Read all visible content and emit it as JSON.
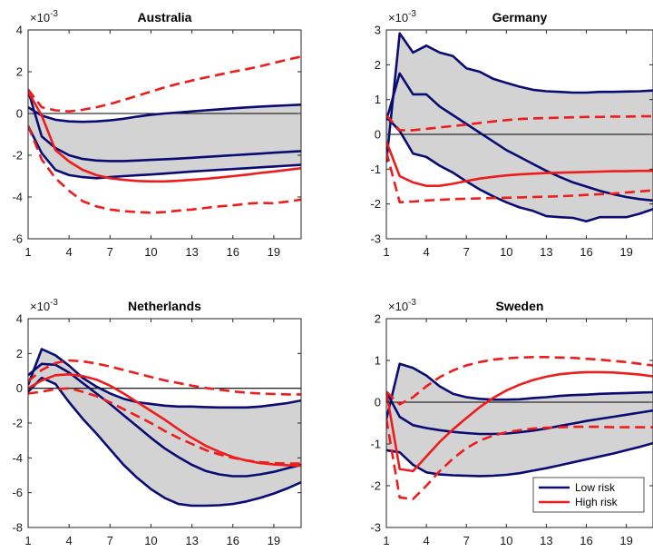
{
  "colors": {
    "band": "#d3d3d3",
    "low_risk": "#0b0b74",
    "high_risk": "#ee1c1c",
    "zero_line": "#000000",
    "axes": "#262626"
  },
  "chart_data": [
    {
      "type": "line",
      "title": "Australia",
      "exponent": "×10",
      "exponent_power": "-3",
      "x": [
        1,
        2,
        3,
        4,
        5,
        6,
        7,
        8,
        9,
        10,
        11,
        12,
        13,
        14,
        15,
        16,
        17,
        18,
        19,
        20,
        21
      ],
      "xticks": [
        "1",
        "4",
        "7",
        "10",
        "13",
        "16",
        "19"
      ],
      "xtick_values": [
        1,
        4,
        7,
        10,
        13,
        16,
        19
      ],
      "xlim": [
        1,
        21
      ],
      "ylim": [
        -6,
        4
      ],
      "yticks": [
        "-6",
        "-4",
        "-2",
        "0",
        "2",
        "4"
      ],
      "ytick_values": [
        -6,
        -4,
        -2,
        0,
        2,
        4
      ],
      "band_upper": [
        0.3,
        -0.1,
        -0.3,
        -0.38,
        -0.4,
        -0.38,
        -0.33,
        -0.25,
        -0.15,
        -0.06,
        0.0,
        0.05,
        0.1,
        0.15,
        0.2,
        0.25,
        0.29,
        0.33,
        0.36,
        0.39,
        0.42
      ],
      "band_lower": [
        -0.6,
        -1.9,
        -2.7,
        -2.95,
        -3.05,
        -3.1,
        -3.05,
        -3.0,
        -2.96,
        -2.92,
        -2.88,
        -2.83,
        -2.78,
        -2.74,
        -2.7,
        -2.66,
        -2.62,
        -2.58,
        -2.54,
        -2.5,
        -2.46
      ],
      "low_median": [
        1.1,
        -1.1,
        -1.65,
        -2.0,
        -2.18,
        -2.25,
        -2.28,
        -2.28,
        -2.25,
        -2.22,
        -2.19,
        -2.16,
        -2.12,
        -2.08,
        -2.04,
        -2.0,
        -1.96,
        -1.92,
        -1.88,
        -1.84,
        -1.8
      ],
      "high_median": [
        1.05,
        -0.1,
        -1.75,
        -2.3,
        -2.7,
        -2.95,
        -3.1,
        -3.18,
        -3.23,
        -3.25,
        -3.25,
        -3.22,
        -3.18,
        -3.13,
        -3.07,
        -3.0,
        -2.93,
        -2.85,
        -2.78,
        -2.7,
        -2.62
      ],
      "high_upper": [
        1.15,
        0.3,
        0.15,
        0.1,
        0.18,
        0.3,
        0.45,
        0.65,
        0.85,
        1.05,
        1.25,
        1.42,
        1.58,
        1.72,
        1.86,
        2.0,
        2.12,
        2.26,
        2.42,
        2.58,
        2.72
      ],
      "high_lower": [
        -0.6,
        -2.2,
        -3.1,
        -3.7,
        -4.2,
        -4.45,
        -4.6,
        -4.68,
        -4.72,
        -4.75,
        -4.72,
        -4.65,
        -4.6,
        -4.52,
        -4.45,
        -4.4,
        -4.32,
        -4.28,
        -4.3,
        -4.22,
        -4.12
      ]
    },
    {
      "type": "line",
      "title": "Germany",
      "exponent": "×10",
      "exponent_power": "-3",
      "x": [
        1,
        2,
        3,
        4,
        5,
        6,
        7,
        8,
        9,
        10,
        11,
        12,
        13,
        14,
        15,
        16,
        17,
        18,
        19,
        20,
        21
      ],
      "xticks": [
        "1",
        "4",
        "7",
        "10",
        "13",
        "16",
        "19"
      ],
      "xtick_values": [
        1,
        4,
        7,
        10,
        13,
        16,
        19
      ],
      "xlim": [
        1,
        21
      ],
      "ylim": [
        -3,
        3
      ],
      "yticks": [
        "-3",
        "-2",
        "-1",
        "0",
        "1",
        "2",
        "3"
      ],
      "ytick_values": [
        -3,
        -2,
        -1,
        0,
        1,
        2,
        3
      ],
      "band_upper": [
        -0.8,
        2.9,
        2.35,
        2.55,
        2.35,
        2.25,
        1.9,
        1.8,
        1.6,
        1.48,
        1.37,
        1.28,
        1.24,
        1.22,
        1.2,
        1.2,
        1.22,
        1.22,
        1.23,
        1.24,
        1.26
      ],
      "band_lower": [
        0.5,
        0.1,
        -0.55,
        -0.65,
        -0.9,
        -1.1,
        -1.35,
        -1.58,
        -1.78,
        -1.95,
        -2.1,
        -2.2,
        -2.35,
        -2.38,
        -2.4,
        -2.5,
        -2.38,
        -2.38,
        -2.38,
        -2.28,
        -2.15
      ],
      "low_median": [
        0.4,
        1.75,
        1.15,
        1.15,
        0.8,
        0.55,
        0.3,
        0.05,
        -0.2,
        -0.45,
        -0.65,
        -0.85,
        -1.05,
        -1.22,
        -1.38,
        -1.5,
        -1.62,
        -1.72,
        -1.8,
        -1.86,
        -1.9
      ],
      "high_median": [
        -0.2,
        -1.2,
        -1.38,
        -1.48,
        -1.48,
        -1.42,
        -1.34,
        -1.27,
        -1.22,
        -1.18,
        -1.15,
        -1.13,
        -1.11,
        -1.1,
        -1.09,
        -1.08,
        -1.07,
        -1.06,
        -1.06,
        -1.05,
        -1.05
      ],
      "high_upper": [
        0.55,
        0.12,
        0.12,
        0.16,
        0.2,
        0.24,
        0.28,
        0.33,
        0.37,
        0.41,
        0.44,
        0.46,
        0.47,
        0.48,
        0.49,
        0.5,
        0.5,
        0.51,
        0.51,
        0.52,
        0.52
      ],
      "high_lower": [
        -0.5,
        -1.95,
        -1.93,
        -1.9,
        -1.88,
        -1.86,
        -1.85,
        -1.84,
        -1.83,
        -1.82,
        -1.81,
        -1.8,
        -1.79,
        -1.78,
        -1.76,
        -1.74,
        -1.72,
        -1.7,
        -1.67,
        -1.64,
        -1.61
      ]
    },
    {
      "type": "line",
      "title": "Netherlands",
      "exponent": "×10",
      "exponent_power": "-3",
      "x": [
        1,
        2,
        3,
        4,
        5,
        6,
        7,
        8,
        9,
        10,
        11,
        12,
        13,
        14,
        15,
        16,
        17,
        18,
        19,
        20,
        21
      ],
      "xticks": [
        "1",
        "4",
        "7",
        "10",
        "13",
        "16",
        "19"
      ],
      "xtick_values": [
        1,
        4,
        7,
        10,
        13,
        16,
        19
      ],
      "xlim": [
        1,
        21
      ],
      "ylim": [
        -8,
        4
      ],
      "yticks": [
        "-8",
        "-6",
        "-4",
        "-2",
        "0",
        "2",
        "4"
      ],
      "ytick_values": [
        -8,
        -6,
        -4,
        -2,
        0,
        2,
        4
      ],
      "band_upper": [
        0.2,
        2.25,
        1.9,
        1.3,
        0.6,
        0.1,
        -0.3,
        -0.6,
        -0.8,
        -0.9,
        -1.0,
        -1.05,
        -1.05,
        -1.08,
        -1.1,
        -1.1,
        -1.1,
        -1.05,
        -0.95,
        -0.85,
        -0.7
      ],
      "band_lower": [
        -0.2,
        0.6,
        0.25,
        -0.8,
        -1.75,
        -2.6,
        -3.5,
        -4.4,
        -5.15,
        -5.8,
        -6.3,
        -6.65,
        -6.75,
        -6.75,
        -6.72,
        -6.65,
        -6.5,
        -6.3,
        -6.05,
        -5.75,
        -5.4
      ],
      "low_median": [
        0.75,
        1.4,
        1.35,
        0.9,
        0.3,
        -0.3,
        -0.9,
        -1.55,
        -2.2,
        -2.85,
        -3.45,
        -3.95,
        -4.4,
        -4.75,
        -4.95,
        -5.05,
        -5.05,
        -4.95,
        -4.8,
        -4.6,
        -4.4
      ],
      "high_median": [
        0.0,
        0.45,
        0.75,
        0.8,
        0.7,
        0.5,
        0.15,
        -0.3,
        -0.8,
        -1.3,
        -1.8,
        -2.35,
        -2.85,
        -3.3,
        -3.65,
        -3.95,
        -4.15,
        -4.3,
        -4.38,
        -4.42,
        -4.45
      ],
      "high_upper": [
        0.4,
        1.05,
        1.45,
        1.6,
        1.55,
        1.42,
        1.25,
        1.05,
        0.85,
        0.65,
        0.45,
        0.3,
        0.15,
        0.02,
        -0.08,
        -0.18,
        -0.25,
        -0.3,
        -0.33,
        -0.35,
        -0.35
      ],
      "high_lower": [
        -0.3,
        -0.2,
        -0.05,
        0.0,
        -0.2,
        -0.45,
        -0.8,
        -1.2,
        -1.6,
        -2.0,
        -2.45,
        -2.85,
        -3.2,
        -3.55,
        -3.8,
        -4.0,
        -4.15,
        -4.25,
        -4.3,
        -4.32,
        -4.32
      ]
    },
    {
      "type": "line",
      "title": "Sweden",
      "exponent": "×10",
      "exponent_power": "-3",
      "x": [
        1,
        2,
        3,
        4,
        5,
        6,
        7,
        8,
        9,
        10,
        11,
        12,
        13,
        14,
        15,
        16,
        17,
        18,
        19,
        20,
        21
      ],
      "xticks": [
        "1",
        "4",
        "7",
        "10",
        "13",
        "16",
        "19"
      ],
      "xtick_values": [
        1,
        4,
        7,
        10,
        13,
        16,
        19
      ],
      "xlim": [
        1,
        21
      ],
      "ylim": [
        -3,
        2
      ],
      "yticks": [
        "-3",
        "-2",
        "-1",
        "0",
        "1",
        "2"
      ],
      "ytick_values": [
        -3,
        -2,
        -1,
        0,
        1,
        2
      ],
      "band_upper": [
        -0.4,
        0.92,
        0.82,
        0.64,
        0.38,
        0.2,
        0.12,
        0.08,
        0.06,
        0.06,
        0.07,
        0.1,
        0.12,
        0.15,
        0.17,
        0.18,
        0.2,
        0.21,
        0.22,
        0.23,
        0.24
      ],
      "band_lower": [
        -1.15,
        -1.2,
        -1.5,
        -1.68,
        -1.73,
        -1.75,
        -1.76,
        -1.77,
        -1.76,
        -1.74,
        -1.7,
        -1.64,
        -1.58,
        -1.51,
        -1.44,
        -1.37,
        -1.3,
        -1.23,
        -1.15,
        -1.07,
        -0.98
      ],
      "low_median": [
        0.25,
        -0.35,
        -0.55,
        -0.62,
        -0.67,
        -0.71,
        -0.74,
        -0.76,
        -0.76,
        -0.75,
        -0.72,
        -0.68,
        -0.63,
        -0.57,
        -0.51,
        -0.45,
        -0.4,
        -0.35,
        -0.3,
        -0.25,
        -0.2
      ],
      "high_median": [
        0.25,
        -1.6,
        -1.65,
        -1.3,
        -0.95,
        -0.65,
        -0.38,
        -0.12,
        0.1,
        0.28,
        0.42,
        0.53,
        0.61,
        0.67,
        0.7,
        0.72,
        0.72,
        0.71,
        0.69,
        0.66,
        0.62
      ],
      "high_upper": [
        0.25,
        -0.05,
        0.12,
        0.38,
        0.6,
        0.76,
        0.88,
        0.96,
        1.02,
        1.05,
        1.07,
        1.08,
        1.08,
        1.07,
        1.06,
        1.04,
        1.02,
        0.99,
        0.96,
        0.92,
        0.88
      ],
      "high_lower": [
        -0.4,
        -2.28,
        -2.32,
        -2.0,
        -1.65,
        -1.35,
        -1.1,
        -0.92,
        -0.8,
        -0.72,
        -0.67,
        -0.63,
        -0.61,
        -0.6,
        -0.59,
        -0.59,
        -0.59,
        -0.6,
        -0.6,
        -0.6,
        -0.6
      ]
    }
  ],
  "legend": {
    "items": [
      {
        "label": "Low risk",
        "color": "#0b0b74"
      },
      {
        "label": "High risk",
        "color": "#ee1c1c"
      }
    ]
  }
}
